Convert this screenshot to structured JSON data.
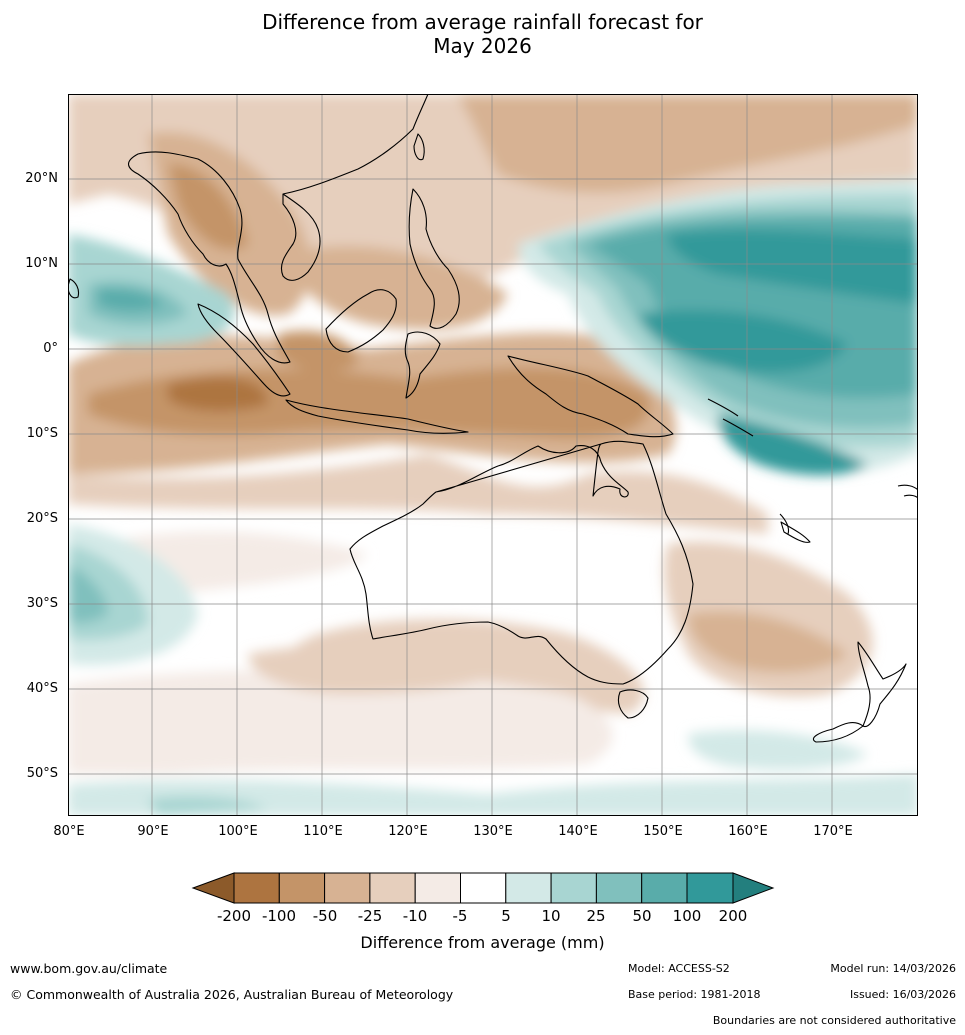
{
  "title_line1": "Difference from average rainfall forecast for",
  "title_line2": "May 2026",
  "lat_labels": [
    "20°N",
    "10°N",
    "0°",
    "10°S",
    "20°S",
    "30°S",
    "40°S",
    "50°S"
  ],
  "lon_labels": [
    "80°E",
    "90°E",
    "100°E",
    "110°E",
    "120°E",
    "130°E",
    "140°E",
    "150°E",
    "160°E",
    "170°E"
  ],
  "legend": {
    "title": "Difference from average (mm)",
    "ticks": [
      "-200",
      "-100",
      "-50",
      "-25",
      "-10",
      "-5",
      "5",
      "10",
      "25",
      "50",
      "100",
      "200"
    ],
    "colors": [
      "#8c5a2a",
      "#ad7440",
      "#c49468",
      "#d7b293",
      "#e6cfbd",
      "#f4ebe6",
      "#ffffff",
      "#d3e9e7",
      "#a8d5d2",
      "#80c0bd",
      "#59acaa",
      "#31999a",
      "#237f7e"
    ]
  },
  "footer": {
    "website": "www.bom.gov.au/climate",
    "copyright": "© Commonwealth of Australia 2026, Australian Bureau of Meteorology",
    "model": "Model: ACCESS-S2",
    "base_period": "Base period: 1981-2018",
    "model_run": "Model run: 14/03/2026",
    "issued": "Issued: 16/03/2026",
    "disclaimer": "Boundaries are not considered authoritative"
  }
}
